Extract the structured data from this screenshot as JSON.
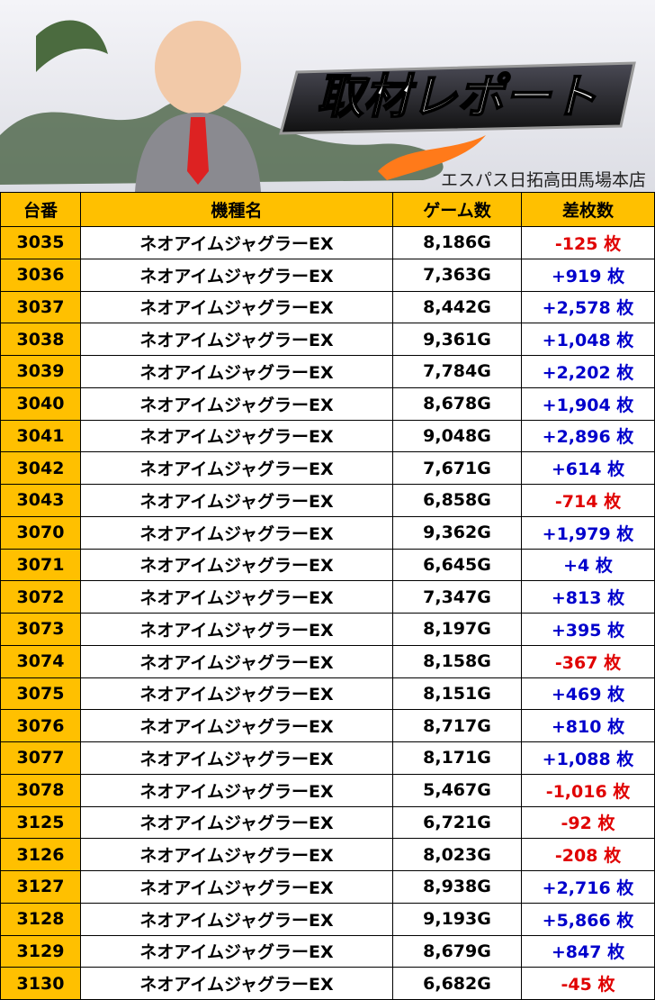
{
  "banner": {
    "title": "取材レポート",
    "store": "エスパス日拓高田馬場本店"
  },
  "table": {
    "header": [
      "台番",
      "機種名",
      "ゲーム数",
      "差枚数"
    ],
    "rows": [
      [
        "3035",
        "ネオアイムジャグラーEX",
        "8,186G",
        "-125 枚"
      ],
      [
        "3036",
        "ネオアイムジャグラーEX",
        "7,363G",
        "+919 枚"
      ],
      [
        "3037",
        "ネオアイムジャグラーEX",
        "8,442G",
        "+2,578 枚"
      ],
      [
        "3038",
        "ネオアイムジャグラーEX",
        "9,361G",
        "+1,048 枚"
      ],
      [
        "3039",
        "ネオアイムジャグラーEX",
        "7,784G",
        "+2,202 枚"
      ],
      [
        "3040",
        "ネオアイムジャグラーEX",
        "8,678G",
        "+1,904 枚"
      ],
      [
        "3041",
        "ネオアイムジャグラーEX",
        "9,048G",
        "+2,896 枚"
      ],
      [
        "3042",
        "ネオアイムジャグラーEX",
        "7,671G",
        "+614 枚"
      ],
      [
        "3043",
        "ネオアイムジャグラーEX",
        "6,858G",
        "-714 枚"
      ],
      [
        "3070",
        "ネオアイムジャグラーEX",
        "9,362G",
        "+1,979 枚"
      ],
      [
        "3071",
        "ネオアイムジャグラーEX",
        "6,645G",
        "+4 枚"
      ],
      [
        "3072",
        "ネオアイムジャグラーEX",
        "7,347G",
        "+813 枚"
      ],
      [
        "3073",
        "ネオアイムジャグラーEX",
        "8,197G",
        "+395 枚"
      ],
      [
        "3074",
        "ネオアイムジャグラーEX",
        "8,158G",
        "-367 枚"
      ],
      [
        "3075",
        "ネオアイムジャグラーEX",
        "8,151G",
        "+469 枚"
      ],
      [
        "3076",
        "ネオアイムジャグラーEX",
        "8,717G",
        "+810 枚"
      ],
      [
        "3077",
        "ネオアイムジャグラーEX",
        "8,171G",
        "+1,088 枚"
      ],
      [
        "3078",
        "ネオアイムジャグラーEX",
        "5,467G",
        "-1,016 枚"
      ],
      [
        "3125",
        "ネオアイムジャグラーEX",
        "6,721G",
        "-92 枚"
      ],
      [
        "3126",
        "ネオアイムジャグラーEX",
        "8,023G",
        "-208 枚"
      ],
      [
        "3127",
        "ネオアイムジャグラーEX",
        "8,938G",
        "+2,716 枚"
      ],
      [
        "3128",
        "ネオアイムジャグラーEX",
        "9,193G",
        "+5,866 枚"
      ],
      [
        "3129",
        "ネオアイムジャグラーEX",
        "8,679G",
        "+847 枚"
      ],
      [
        "3130",
        "ネオアイムジャグラーEX",
        "6,682G",
        "-45 枚"
      ]
    ]
  }
}
